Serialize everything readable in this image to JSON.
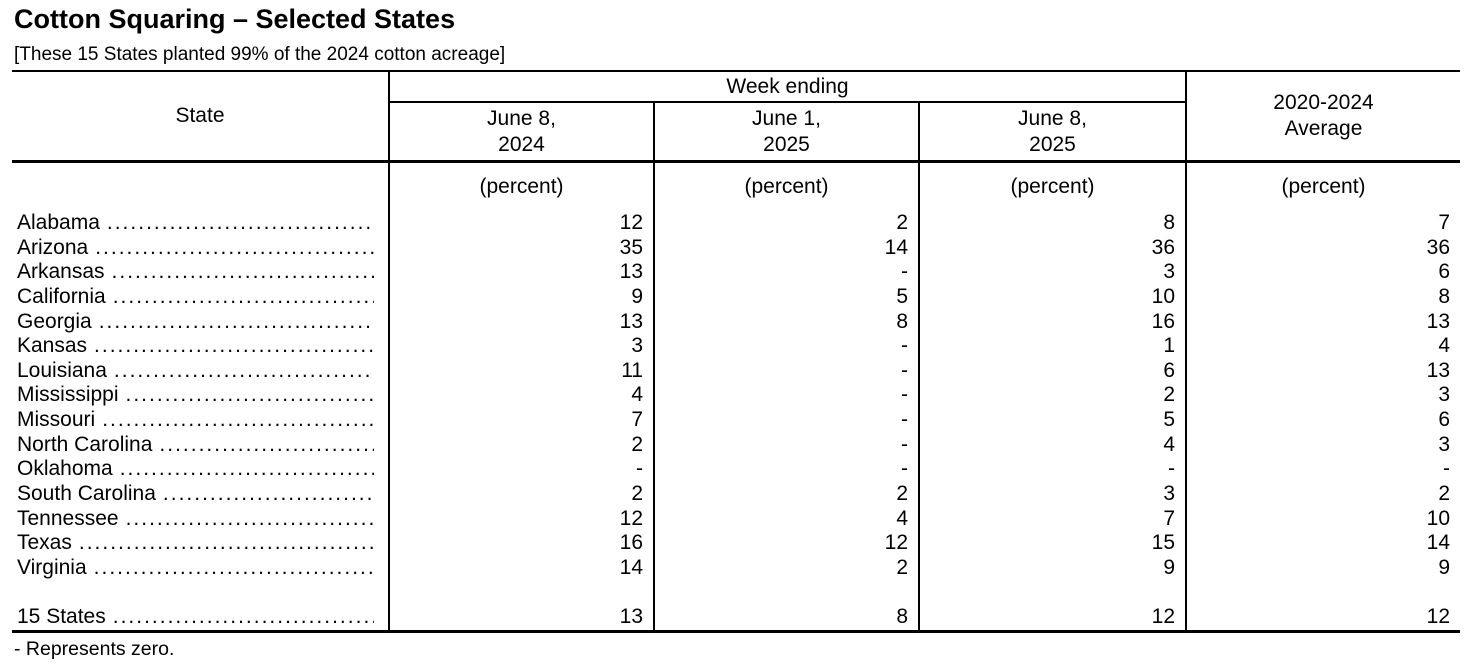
{
  "page": {
    "title": "Cotton Squaring – Selected States",
    "subtitle": "[These 15 States planted 99% of the 2024 cotton acreage]",
    "footnote": "- Represents zero."
  },
  "table": {
    "columns": {
      "state": "State",
      "week_ending": "Week ending",
      "average_line1": "2020-2024",
      "average_line2": "Average",
      "dates": [
        {
          "line1": "June 8,",
          "line2": "2024"
        },
        {
          "line1": "June 1,",
          "line2": "2025"
        },
        {
          "line1": "June 8,",
          "line2": "2025"
        }
      ],
      "unit": "(percent)"
    },
    "rows": [
      {
        "state": "Alabama",
        "values": [
          "12",
          "2",
          "8",
          "7"
        ]
      },
      {
        "state": "Arizona",
        "values": [
          "35",
          "14",
          "36",
          "36"
        ]
      },
      {
        "state": "Arkansas",
        "values": [
          "13",
          "-",
          "3",
          "6"
        ]
      },
      {
        "state": "California",
        "values": [
          "9",
          "5",
          "10",
          "8"
        ]
      },
      {
        "state": "Georgia",
        "values": [
          "13",
          "8",
          "16",
          "13"
        ]
      },
      {
        "state": "Kansas",
        "values": [
          "3",
          "-",
          "1",
          "4"
        ]
      },
      {
        "state": "Louisiana",
        "values": [
          "11",
          "-",
          "6",
          "13"
        ]
      },
      {
        "state": "Mississippi",
        "values": [
          "4",
          "-",
          "2",
          "3"
        ]
      },
      {
        "state": "Missouri",
        "values": [
          "7",
          "-",
          "5",
          "6"
        ]
      },
      {
        "state": "North Carolina",
        "values": [
          "2",
          "-",
          "4",
          "3"
        ]
      },
      {
        "state": "Oklahoma",
        "values": [
          "-",
          "-",
          "-",
          "-"
        ]
      },
      {
        "state": "South Carolina",
        "values": [
          "2",
          "2",
          "3",
          "2"
        ]
      },
      {
        "state": "Tennessee",
        "values": [
          "12",
          "4",
          "7",
          "10"
        ]
      },
      {
        "state": "Texas",
        "values": [
          "16",
          "12",
          "15",
          "14"
        ]
      },
      {
        "state": "Virginia",
        "values": [
          "14",
          "2",
          "9",
          "9"
        ]
      }
    ],
    "total_row": {
      "state": "15 States",
      "values": [
        "13",
        "8",
        "12",
        "12"
      ]
    }
  },
  "colors": {
    "background": "#ffffff",
    "text": "#000000",
    "border": "#000000"
  }
}
